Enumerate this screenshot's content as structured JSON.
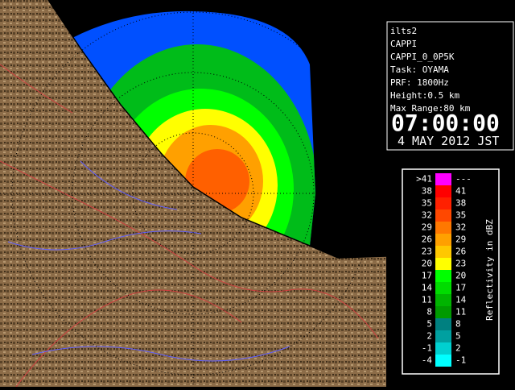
{
  "info": {
    "lines": [
      "ilts2",
      "CAPPI",
      "CAPPI_0_0P5K",
      "Task: OYAMA",
      "PRF: 1800Hz",
      "Height:0.5 km",
      "Max Range:80 km"
    ],
    "time": "07:00:00",
    "date": "4 MAY 2012 JST"
  },
  "legend": {
    "title": "Reflectivity in dBZ",
    "rows": [
      {
        "low": ">41",
        "high": "---",
        "color": "#ff00ff"
      },
      {
        "low": "38",
        "high": "41",
        "color": "#ff0000"
      },
      {
        "low": "35",
        "high": "38",
        "color": "#ff2000"
      },
      {
        "low": "32",
        "high": "35",
        "color": "#ff4800"
      },
      {
        "low": "29",
        "high": "32",
        "color": "#ff7800"
      },
      {
        "low": "26",
        "high": "29",
        "color": "#ffa000"
      },
      {
        "low": "23",
        "high": "26",
        "color": "#ffc800"
      },
      {
        "low": "20",
        "high": "23",
        "color": "#ffff00"
      },
      {
        "low": "17",
        "high": "20",
        "color": "#00ff00"
      },
      {
        "low": "14",
        "high": "17",
        "color": "#00dc00"
      },
      {
        "low": "11",
        "high": "14",
        "color": "#00b400"
      },
      {
        "low": "8",
        "high": "11",
        "color": "#009a00"
      },
      {
        "low": "5",
        "high": "8",
        "color": "#008080"
      },
      {
        "low": "2",
        "high": "5",
        "color": "#00a0a0"
      },
      {
        "low": "-1",
        "high": "2",
        "color": "#00d0d0"
      },
      {
        "low": "-4",
        "high": "-1",
        "color": "#00ffff"
      }
    ]
  }
}
